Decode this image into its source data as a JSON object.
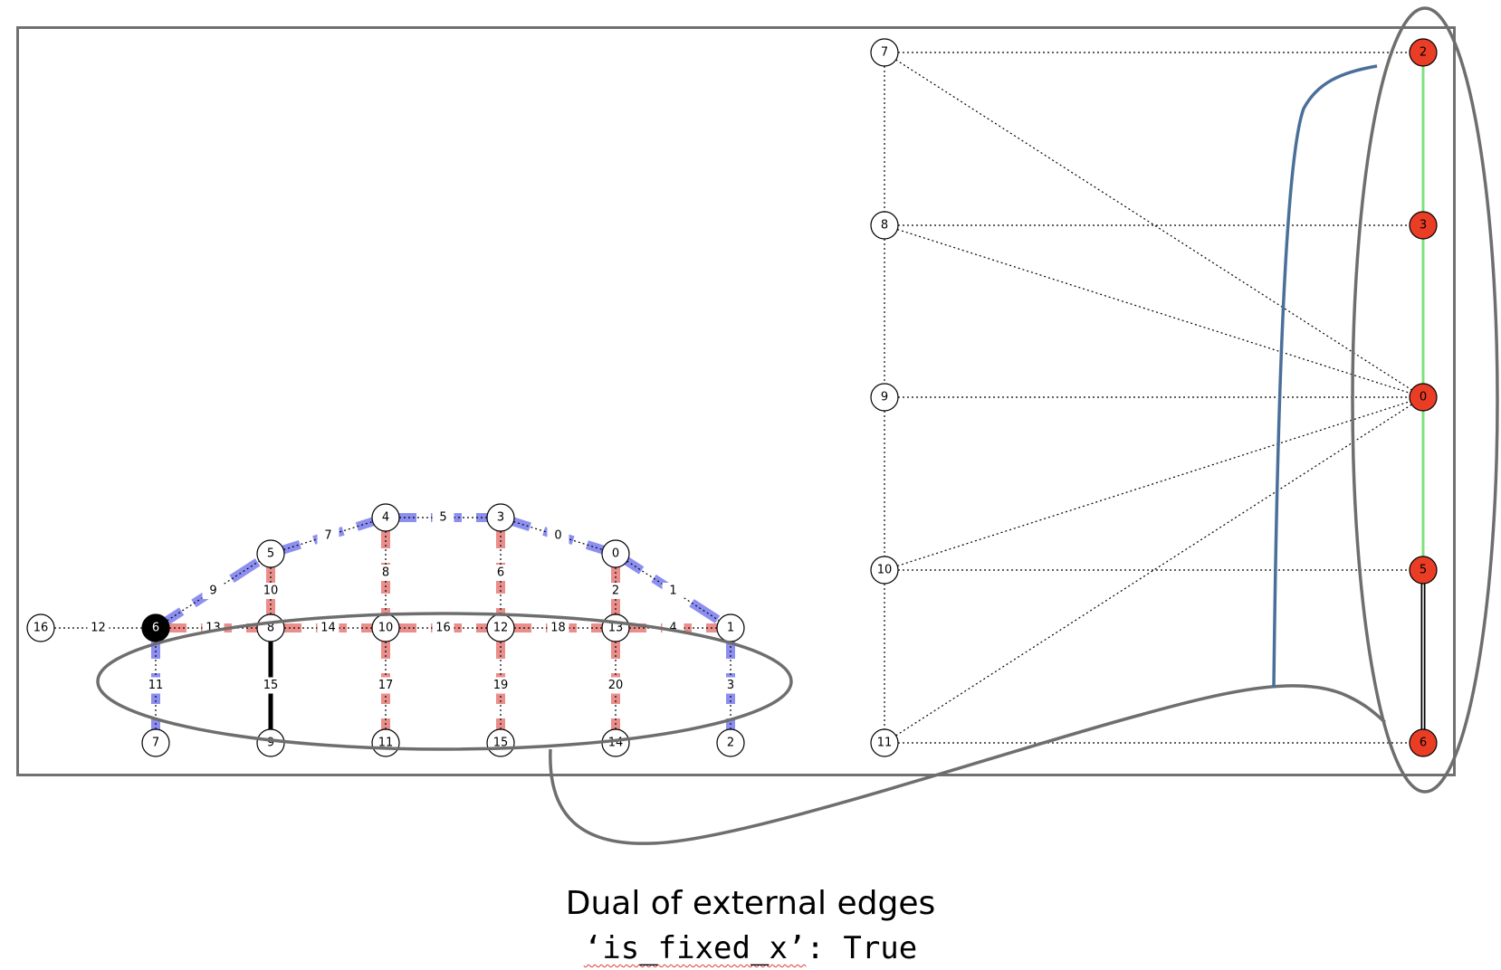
{
  "caption": {
    "title": "Dual of external edges",
    "code_key": "‘is_fixed_x’",
    "code_sep": ": ",
    "code_value": "True"
  },
  "colors": {
    "blue_highlight": "#8c8ff0",
    "red_highlight": "#ea8e8b",
    "red_node": "#ea3d26",
    "green_edge": "#7fe07f",
    "annotation_gray": "#6e6e6e",
    "connector_blue": "#4a6f9a"
  },
  "primal_graph": {
    "nodes": [
      {
        "id": "16",
        "style": "white"
      },
      {
        "id": "6",
        "style": "black"
      },
      {
        "id": "8",
        "style": "white"
      },
      {
        "id": "10",
        "style": "white"
      },
      {
        "id": "12",
        "style": "white"
      },
      {
        "id": "13",
        "style": "white"
      },
      {
        "id": "1",
        "style": "white"
      },
      {
        "id": "5",
        "style": "white"
      },
      {
        "id": "4",
        "style": "white"
      },
      {
        "id": "3",
        "style": "white"
      },
      {
        "id": "0",
        "style": "white"
      },
      {
        "id": "7",
        "style": "white"
      },
      {
        "id": "9",
        "style": "white"
      },
      {
        "id": "11",
        "style": "white"
      },
      {
        "id": "15",
        "style": "white"
      },
      {
        "id": "14",
        "style": "white"
      },
      {
        "id": "2",
        "style": "white"
      }
    ],
    "edges": [
      {
        "id": "12",
        "from": "16",
        "to": "6",
        "highlight": "none"
      },
      {
        "id": "9",
        "from": "6",
        "to": "5",
        "highlight": "blue"
      },
      {
        "id": "7",
        "from": "5",
        "to": "4",
        "highlight": "blue"
      },
      {
        "id": "5",
        "from": "4",
        "to": "3",
        "highlight": "blue"
      },
      {
        "id": "0",
        "from": "3",
        "to": "0",
        "highlight": "blue"
      },
      {
        "id": "1",
        "from": "0",
        "to": "1",
        "highlight": "blue"
      },
      {
        "id": "13",
        "from": "6",
        "to": "8",
        "highlight": "red"
      },
      {
        "id": "14",
        "from": "8",
        "to": "10",
        "highlight": "red"
      },
      {
        "id": "16",
        "from": "10",
        "to": "12",
        "highlight": "red"
      },
      {
        "id": "18",
        "from": "12",
        "to": "13",
        "highlight": "red"
      },
      {
        "id": "4",
        "from": "13",
        "to": "1",
        "highlight": "red"
      },
      {
        "id": "10",
        "from": "5",
        "to": "8",
        "highlight": "red"
      },
      {
        "id": "8",
        "from": "4",
        "to": "10",
        "highlight": "red"
      },
      {
        "id": "6",
        "from": "3",
        "to": "12",
        "highlight": "red"
      },
      {
        "id": "2",
        "from": "0",
        "to": "13",
        "highlight": "red"
      },
      {
        "id": "11",
        "from": "6",
        "to": "7",
        "highlight": "blue"
      },
      {
        "id": "15",
        "from": "8",
        "to": "9",
        "highlight": "black"
      },
      {
        "id": "17",
        "from": "10",
        "to": "11",
        "highlight": "red"
      },
      {
        "id": "19",
        "from": "12",
        "to": "15",
        "highlight": "red"
      },
      {
        "id": "20",
        "from": "13",
        "to": "14",
        "highlight": "red"
      },
      {
        "id": "3",
        "from": "1",
        "to": "2",
        "highlight": "blue"
      }
    ]
  },
  "dual_graph": {
    "left_nodes": [
      "7",
      "8",
      "9",
      "10",
      "11"
    ],
    "right_nodes": [
      {
        "id": "2",
        "label": "2"
      },
      {
        "id": "3",
        "label": "3"
      },
      {
        "id": "4",
        "label": "0"
      },
      {
        "id": "5",
        "label": "5"
      },
      {
        "id": "6",
        "label": "6"
      }
    ],
    "horizontal_edges": [
      [
        "7",
        "2"
      ],
      [
        "8",
        "3"
      ],
      [
        "9",
        "4"
      ],
      [
        "10",
        "5"
      ],
      [
        "11",
        "6"
      ]
    ],
    "diagonal_edges": [
      [
        "7",
        "4"
      ],
      [
        "8",
        "4"
      ],
      [
        "10",
        "4"
      ],
      [
        "11",
        "4"
      ]
    ],
    "vertical_left": [
      [
        "7",
        "8"
      ],
      [
        "8",
        "9"
      ],
      [
        "9",
        "10"
      ],
      [
        "10",
        "11"
      ]
    ],
    "vertical_right": [
      {
        "from": "2",
        "to": "3",
        "style": "green"
      },
      {
        "from": "3",
        "to": "4",
        "style": "green"
      },
      {
        "from": "4",
        "to": "5",
        "style": "green"
      },
      {
        "from": "5",
        "to": "6",
        "style": "black"
      }
    ]
  }
}
